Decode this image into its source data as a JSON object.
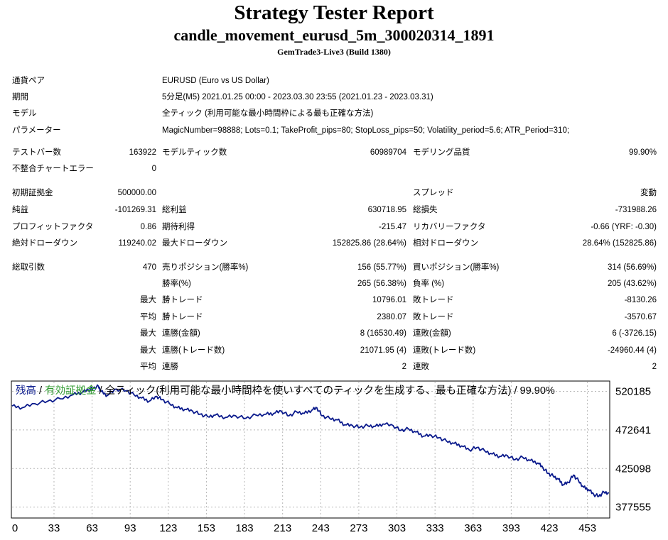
{
  "header": {
    "title": "Strategy Tester Report",
    "subtitle": "candle_movement_eurusd_5m_300020314_1891",
    "build": "GemTrade3-Live3 (Build 1380)"
  },
  "info": [
    {
      "label": "通貨ペア",
      "value": "EURUSD (Euro vs US Dollar)"
    },
    {
      "label": "期間",
      "value": "5分足(M5) 2021.01.25 00:00 - 2023.03.30 23:55 (2021.01.23 - 2023.03.31)"
    },
    {
      "label": "モデル",
      "value": "全ティック (利用可能な最小時間枠による最も正確な方法)"
    },
    {
      "label": "パラメーター",
      "value": "MagicNumber=98888; Lots=0.1; TakeProfit_pips=80; StopLoss_pips=50; Volatility_period=5.6; ATR_Period=310;"
    }
  ],
  "stats": {
    "bars_label": "テストバー数",
    "bars": "163922",
    "ticks_label": "モデルティック数",
    "ticks": "60989704",
    "quality_label": "モデリング品質",
    "quality": "99.90%",
    "mismatch_label": "不整合チャートエラー",
    "mismatch": "0",
    "deposit_label": "初期証拠金",
    "deposit": "500000.00",
    "spread_label": "スプレッド",
    "spread": "変動",
    "net_label": "純益",
    "net": "-101269.31",
    "gross_profit_label": "総利益",
    "gross_profit": "630718.95",
    "gross_loss_label": "総損失",
    "gross_loss": "-731988.26",
    "pf_label": "プロフィットファクタ",
    "pf": "0.86",
    "expected_label": "期待利得",
    "expected": "-215.47",
    "recovery_label": "リカバリーファクタ",
    "recovery": "-0.66 (YRF: -0.30)",
    "abs_dd_label": "絶対ドローダウン",
    "abs_dd": "119240.02",
    "max_dd_label": "最大ドローダウン",
    "max_dd": "152825.86 (28.64%)",
    "rel_dd_label": "相対ドローダウン",
    "rel_dd": "28.64% (152825.86)",
    "total_trades_label": "総取引数",
    "total_trades": "470",
    "short_label": "売りポジション(勝率%)",
    "short": "156 (55.77%)",
    "long_label": "買いポジション(勝率%)",
    "long": "314 (56.69%)",
    "win_rate_label": "勝率(%)",
    "win_rate": "265 (56.38%)",
    "loss_rate_label": "負率 (%)",
    "loss_rate": "205 (43.62%)",
    "max_word": "最大",
    "avg_word": "平均",
    "max_win_label": "勝トレード",
    "max_win": "10796.01",
    "max_loss_label": "敗トレード",
    "max_loss": "-8130.26",
    "avg_win_label": "勝トレード",
    "avg_win": "2380.07",
    "avg_loss_label": "敗トレード",
    "avg_loss": "-3570.67",
    "cons_win_money_label": "連勝(金額)",
    "cons_win_money": "8 (16530.49)",
    "cons_loss_money_label": "連敗(金額)",
    "cons_loss_money": "6 (-3726.15)",
    "cons_win_trades_label": "連勝(トレード数)",
    "cons_win_trades": "21071.95 (4)",
    "cons_loss_trades_label": "連敗(トレード数)",
    "cons_loss_trades": "-24960.44 (4)",
    "avg_cons_win_label": "連勝",
    "avg_cons_win": "2",
    "avg_cons_loss_label": "連敗",
    "avg_cons_loss": "2"
  },
  "chart_data": {
    "type": "line",
    "legend": {
      "balance": "残高",
      "sep1": " / ",
      "equity": "有効証拠金",
      "sep2": " / ",
      "model": "全ティック(利用可能な最小時間枠を使いすべてのティックを生成する、最も正確な方法)",
      "sep3": " / ",
      "quality": "99.90%"
    },
    "xticks": [
      0,
      33,
      63,
      93,
      123,
      153,
      183,
      213,
      243,
      273,
      303,
      333,
      363,
      393,
      423,
      453
    ],
    "yticks": [
      520185,
      472641,
      425098,
      377555
    ],
    "xlim": [
      0,
      470
    ],
    "ylim": [
      365000,
      532000
    ],
    "grid": true,
    "colors": {
      "balance": "#0a1a8c",
      "equity": "#2e9a2e",
      "grid": "#b8b8b8"
    },
    "series": [
      {
        "x": [
          0,
          8,
          18,
          28,
          38,
          48,
          55,
          60,
          64,
          68,
          70,
          75,
          82,
          90,
          96,
          102,
          108,
          114,
          118,
          124,
          130,
          136,
          142,
          148,
          154,
          160,
          168,
          176,
          184,
          192,
          200,
          206,
          212,
          218,
          224,
          230,
          236,
          240,
          244,
          250,
          256,
          262,
          268,
          274,
          280,
          286,
          292,
          300,
          306,
          312,
          318,
          324,
          330,
          336,
          342,
          348,
          354,
          360,
          366,
          372,
          378,
          384,
          390,
          396,
          402,
          408,
          414,
          418,
          422,
          426,
          430,
          434,
          438,
          442,
          446,
          450,
          454,
          458,
          462,
          466,
          470
        ],
        "y": [
          502000,
          500000,
          505000,
          508000,
          511000,
          516000,
          519000,
          522000,
          524000,
          526500,
          520000,
          515000,
          523000,
          521000,
          516000,
          512000,
          508000,
          514000,
          510000,
          505000,
          500000,
          498000,
          496000,
          492000,
          489000,
          491000,
          488000,
          490000,
          487000,
          491000,
          492000,
          493000,
          496000,
          490000,
          495000,
          493000,
          497000,
          500000,
          490000,
          487000,
          485000,
          479000,
          478000,
          476000,
          478000,
          477000,
          480000,
          478000,
          472000,
          474000,
          470000,
          465000,
          466000,
          463000,
          459000,
          456000,
          453000,
          448000,
          451000,
          447000,
          443000,
          440000,
          441000,
          436000,
          439000,
          435000,
          432000,
          426000,
          419000,
          416000,
          412000,
          405000,
          408000,
          417000,
          410000,
          402000,
          399000,
          393000,
          391000,
          396000,
          395000
        ]
      }
    ]
  }
}
